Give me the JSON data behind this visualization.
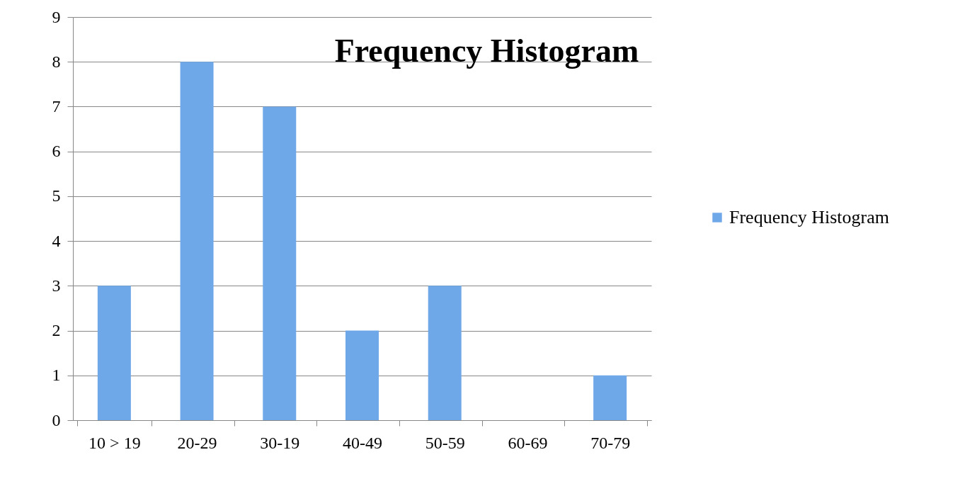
{
  "chart_data": {
    "type": "bar",
    "title": "Frequency Histogram",
    "categories": [
      "10 > 19",
      "20-29",
      "30-19",
      "40-49",
      "50-59",
      "60-69",
      "70-79"
    ],
    "series": [
      {
        "name": "Frequency Histogram",
        "color": "#6fa8e8",
        "values": [
          3,
          8,
          7,
          2,
          3,
          0,
          1
        ]
      }
    ],
    "ylim": [
      0,
      9
    ],
    "yticks": [
      0,
      1,
      2,
      3,
      4,
      5,
      6,
      7,
      8,
      9
    ],
    "grid": "y",
    "legend": "right"
  }
}
